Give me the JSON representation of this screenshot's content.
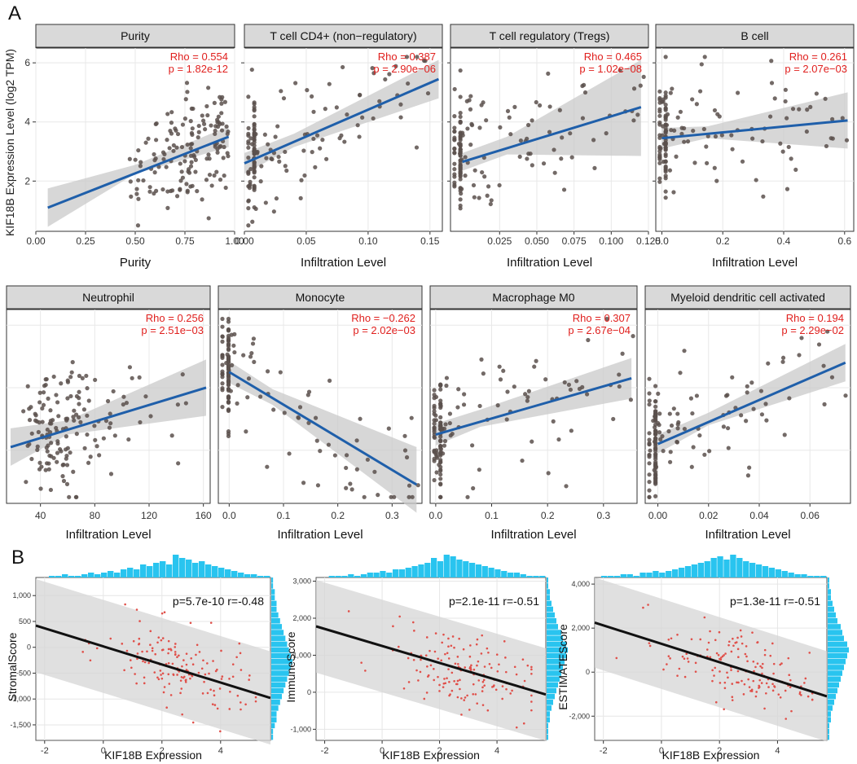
{
  "panel_labels": {
    "a": "A",
    "b": "B"
  },
  "shared_ylabel_a": "KIF18B Expression Level (log2 TPM)",
  "colors": {
    "point": "#5b504c",
    "line": "#1f5faa",
    "band": "#c9c9c9",
    "panel_bg": "#ffffff",
    "grid": "#e8e8e8",
    "strip_bg": "#d9d9d9",
    "stat": "#e0201e",
    "scatter_b": "#e0504a",
    "hist": "#29c4ef",
    "reg_b": "#111111"
  },
  "chart_data": [
    {
      "type": "scatter",
      "id": "purity",
      "title": "Purity",
      "xlabel": "Purity",
      "rho_text": "Rho = 0.554",
      "p_text": "p = 1.82e-12",
      "xlim": [
        0.0,
        1.0
      ],
      "ylim": [
        0.3,
        6.5
      ],
      "xticks": [
        0.0,
        0.25,
        0.5,
        0.75,
        1.0
      ],
      "xtick_labels": [
        "0.00",
        "0.25",
        "0.50",
        "0.75",
        "1.00"
      ],
      "yticks": [
        2,
        4,
        6
      ],
      "ytick_labels": [
        "2",
        "4",
        "6"
      ],
      "fit": {
        "x": [
          0.06,
          0.97
        ],
        "y": [
          1.1,
          3.5
        ]
      },
      "band": {
        "x": [
          0.06,
          0.5,
          0.97
        ],
        "upper": [
          1.75,
          2.55,
          3.85
        ],
        "lower": [
          0.45,
          2.25,
          3.15
        ]
      }
    },
    {
      "type": "scatter",
      "id": "cd4",
      "title": "T cell CD4+ (non−regulatory)",
      "xlabel": "Infiltration Level",
      "rho_text": "Rho = 0.387",
      "p_text": "p = 2.90e−06",
      "xlim": [
        0.0,
        0.16
      ],
      "ylim": [
        0.3,
        6.5
      ],
      "xticks": [
        0.0,
        0.05,
        0.1,
        0.15
      ],
      "xtick_labels": [
        "0.00",
        "0.05",
        "0.10",
        "0.15"
      ],
      "yticks": [
        2,
        4,
        6
      ],
      "ytick_labels": [
        "",
        "",
        ""
      ],
      "fit": {
        "x": [
          0.0,
          0.157
        ],
        "y": [
          2.6,
          5.45
        ]
      },
      "band": {
        "x": [
          0.0,
          0.04,
          0.157
        ],
        "upper": [
          2.95,
          3.6,
          6.1
        ],
        "lower": [
          2.25,
          3.15,
          4.8
        ]
      }
    },
    {
      "type": "scatter",
      "id": "treg",
      "title": "T cell regulatory (Tregs)",
      "xlabel": "Infiltration Level",
      "rho_text": "Rho = 0.465",
      "p_text": "p = 1.02e−08",
      "xlim": [
        -0.008,
        0.125
      ],
      "ylim": [
        0.3,
        6.5
      ],
      "xticks": [
        0.025,
        0.05,
        0.075,
        0.1,
        0.125
      ],
      "xtick_labels": [
        "0.025",
        "0.050",
        "0.075",
        "0.100",
        "0.125"
      ],
      "yticks": [
        2,
        4,
        6
      ],
      "ytick_labels": [
        "",
        "",
        ""
      ],
      "fit": {
        "x": [
          0.0,
          0.12
        ],
        "y": [
          2.65,
          4.5
        ]
      },
      "band": {
        "x": [
          0.0,
          0.03,
          0.12
        ],
        "upper": [
          2.95,
          3.5,
          6.1
        ],
        "lower": [
          2.35,
          2.9,
          2.85
        ]
      }
    },
    {
      "type": "scatter",
      "id": "bcell",
      "title": "B cell",
      "xlabel": "Infiltration Level",
      "rho_text": "Rho = 0.261",
      "p_text": "p = 2.07e−03",
      "xlim": [
        -0.02,
        0.63
      ],
      "ylim": [
        0.3,
        6.5
      ],
      "xticks": [
        0.0,
        0.2,
        0.4,
        0.6
      ],
      "xtick_labels": [
        "0.0",
        "0.2",
        "0.4",
        "0.6"
      ],
      "yticks": [
        2,
        4,
        6
      ],
      "ytick_labels": [
        "",
        "",
        ""
      ],
      "fit": {
        "x": [
          0.0,
          0.61
        ],
        "y": [
          3.45,
          4.05
        ]
      },
      "band": {
        "x": [
          0.0,
          0.15,
          0.61
        ],
        "upper": [
          3.8,
          3.85,
          5.0
        ],
        "lower": [
          3.1,
          3.45,
          3.1
        ]
      }
    },
    {
      "type": "scatter",
      "id": "neutrophil",
      "title": "Neutrophil",
      "xlabel": "Infiltration Level",
      "rho_text": "Rho = 0.256",
      "p_text": "p = 2.51e−03",
      "xlim": [
        15,
        165
      ],
      "ylim": [
        0.3,
        6.5
      ],
      "xticks": [
        40,
        80,
        120,
        160
      ],
      "xtick_labels": [
        "40",
        "80",
        "120",
        "160"
      ],
      "yticks": [],
      "ytick_labels": [],
      "fit": {
        "x": [
          18,
          162
        ],
        "y": [
          2.1,
          4.0
        ]
      },
      "band": {
        "x": [
          18,
          60,
          162
        ],
        "upper": [
          2.7,
          2.95,
          4.9
        ],
        "lower": [
          1.5,
          2.5,
          3.1
        ]
      }
    },
    {
      "type": "scatter",
      "id": "monocyte",
      "title": "Monocyte",
      "xlabel": "Infiltration Level",
      "rho_text": "Rho = −0.262",
      "p_text": "p = 2.02e−03",
      "xlim": [
        -0.02,
        0.355
      ],
      "ylim": [
        0.3,
        6.5
      ],
      "xticks": [
        0.0,
        0.1,
        0.2,
        0.3
      ],
      "xtick_labels": [
        "0.0",
        "0.1",
        "0.2",
        "0.3"
      ],
      "yticks": [],
      "ytick_labels": [],
      "fit": {
        "x": [
          0.0,
          0.345
        ],
        "y": [
          4.5,
          0.9
        ]
      },
      "band": {
        "x": [
          0.0,
          0.08,
          0.345
        ],
        "upper": [
          4.85,
          3.95,
          2.1
        ],
        "lower": [
          4.15,
          3.45,
          0.0
        ]
      }
    },
    {
      "type": "scatter",
      "id": "macrophage",
      "title": "Macrophage M0",
      "xlabel": "Infiltration Level",
      "rho_text": "Rho = 0.307",
      "p_text": "p = 2.67e−04",
      "xlim": [
        -0.01,
        0.36
      ],
      "ylim": [
        0.3,
        6.5
      ],
      "xticks": [
        0.0,
        0.1,
        0.2,
        0.3
      ],
      "xtick_labels": [
        "0.0",
        "0.1",
        "0.2",
        "0.3"
      ],
      "yticks": [],
      "ytick_labels": [],
      "fit": {
        "x": [
          0.0,
          0.35
        ],
        "y": [
          2.5,
          4.3
        ]
      },
      "band": {
        "x": [
          0.0,
          0.08,
          0.35
        ],
        "upper": [
          2.85,
          3.3,
          4.95
        ],
        "lower": [
          2.15,
          2.75,
          3.65
        ]
      }
    },
    {
      "type": "scatter",
      "id": "mdc",
      "title": "Myeloid dendritic cell activated",
      "xlabel": "Infiltration Level",
      "rho_text": "Rho = 0.194",
      "p_text": "p = 2.29e−02",
      "xlim": [
        -0.005,
        0.076
      ],
      "ylim": [
        0.3,
        6.5
      ],
      "xticks": [
        0.0,
        0.02,
        0.04,
        0.06
      ],
      "xtick_labels": [
        "0.00",
        "0.02",
        "0.04",
        "0.06"
      ],
      "yticks": [],
      "ytick_labels": [],
      "fit": {
        "x": [
          0.0,
          0.074
        ],
        "y": [
          2.2,
          4.8
        ]
      },
      "band": {
        "x": [
          0.0,
          0.02,
          0.074
        ],
        "upper": [
          2.5,
          3.2,
          5.4
        ],
        "lower": [
          1.9,
          2.8,
          4.2
        ]
      }
    },
    {
      "type": "scatter",
      "id": "stromal",
      "ylabel": "StromalScore",
      "xlabel": "KIF18B Expression",
      "annotation": "p=5.7e-10 r=-0.48",
      "xlim": [
        -2.3,
        5.7
      ],
      "ylim": [
        -1800,
        1350
      ],
      "xticks": [
        -2,
        0,
        2,
        4
      ],
      "xtick_labels": [
        "-2",
        "0",
        "2",
        "4"
      ],
      "yticks": [
        1000,
        500,
        0,
        -500,
        -1000,
        -1500
      ],
      "ytick_labels": [
        "1,000",
        "500",
        "0",
        "-500",
        "-1,000",
        "-1,500"
      ],
      "fit": {
        "x": [
          -2.3,
          5.7
        ],
        "y": [
          420,
          -980
        ]
      },
      "band_halfwidth": 900,
      "hist_top": [
        0,
        0,
        1,
        1,
        2,
        1,
        1,
        2,
        3,
        2,
        3,
        4,
        3,
        5,
        6,
        5,
        8,
        7,
        9,
        10,
        8,
        14,
        12,
        11,
        9,
        10,
        8,
        7,
        6,
        5,
        4,
        3,
        2,
        2,
        1,
        1
      ],
      "hist_right": [
        1,
        1,
        2,
        2,
        3,
        3,
        4,
        5,
        6,
        7,
        8,
        9,
        10,
        11,
        12,
        11,
        10,
        9,
        8,
        7,
        6,
        5,
        4,
        3,
        3,
        2,
        1,
        1
      ]
    },
    {
      "type": "scatter",
      "id": "immune",
      "ylabel": "ImmuneScore",
      "xlabel": "KIF18B Expression",
      "annotation": "p=2.1e-11 r=-0.51",
      "xlim": [
        -2.3,
        5.7
      ],
      "ylim": [
        -1300,
        3100
      ],
      "xticks": [
        -2,
        0,
        2,
        4
      ],
      "xtick_labels": [
        "-2",
        "0",
        "2",
        "4"
      ],
      "yticks": [
        3000,
        2000,
        1000,
        0,
        -1000
      ],
      "ytick_labels": [
        "3,000",
        "2,000",
        "1,000",
        "0",
        "-1,000"
      ],
      "fit": {
        "x": [
          -2.3,
          5.7
        ],
        "y": [
          1780,
          -60
        ]
      },
      "band_halfwidth": 1250,
      "hist_top": [
        0,
        0,
        1,
        1,
        1,
        2,
        1,
        2,
        3,
        3,
        4,
        3,
        5,
        5,
        6,
        7,
        8,
        9,
        12,
        10,
        14,
        13,
        11,
        10,
        9,
        8,
        7,
        6,
        5,
        4,
        3,
        3,
        2,
        1,
        1,
        1
      ],
      "hist_right": [
        1,
        1,
        2,
        2,
        3,
        4,
        5,
        6,
        7,
        9,
        10,
        12,
        13,
        12,
        11,
        10,
        9,
        8,
        7,
        6,
        5,
        4,
        3,
        2,
        2,
        1,
        1,
        1
      ]
    },
    {
      "type": "scatter",
      "id": "estimate",
      "ylabel": "ESTIMATEScore",
      "xlabel": "KIF18B Expression",
      "annotation": "p=1.3e-11 r=-0.51",
      "xlim": [
        -2.3,
        5.7
      ],
      "ylim": [
        -3100,
        4300
      ],
      "xticks": [
        -2,
        0,
        2,
        4
      ],
      "xtick_labels": [
        "-2",
        "0",
        "2",
        "4"
      ],
      "yticks": [
        4000,
        2000,
        0,
        -2000
      ],
      "ytick_labels": [
        "4,000",
        "2,000",
        "0",
        "-2,000"
      ],
      "fit": {
        "x": [
          -2.3,
          5.7
        ],
        "y": [
          2250,
          -1100
        ]
      },
      "band_halfwidth": 2050,
      "hist_top": [
        0,
        1,
        1,
        1,
        2,
        2,
        1,
        3,
        3,
        4,
        3,
        4,
        5,
        6,
        7,
        8,
        9,
        10,
        12,
        13,
        11,
        14,
        12,
        10,
        9,
        8,
        7,
        6,
        5,
        4,
        3,
        2,
        2,
        1,
        1,
        1
      ],
      "hist_right": [
        1,
        1,
        2,
        2,
        3,
        4,
        5,
        6,
        8,
        9,
        10,
        12,
        13,
        12,
        11,
        10,
        9,
        8,
        7,
        6,
        5,
        4,
        3,
        2,
        2,
        1,
        1,
        1
      ]
    }
  ]
}
